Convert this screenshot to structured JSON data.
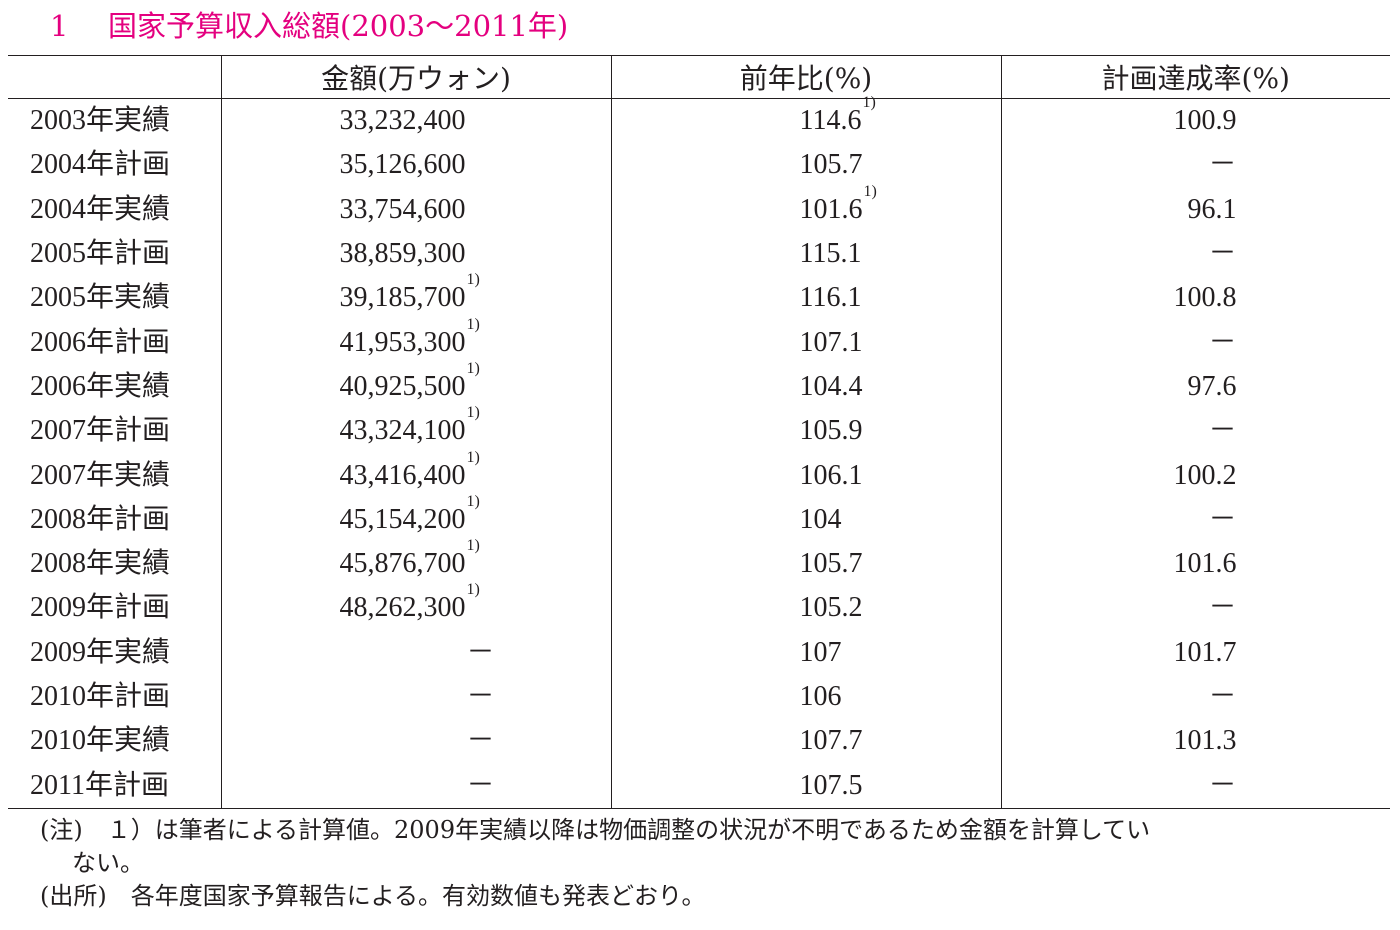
{
  "title": {
    "number": "1",
    "text": "国家予算収入総額(2003～2011年)"
  },
  "table": {
    "headers": [
      "",
      "金額(万ウォン)",
      "前年比(%)",
      "計画達成率(%)"
    ],
    "rows": [
      {
        "label": "2003年実績",
        "amount": "33,232,400",
        "amount_note": "",
        "yoy": "114.6",
        "yoy_note": "1)",
        "achievement": "100.9"
      },
      {
        "label": "2004年計画",
        "amount": "35,126,600",
        "amount_note": "",
        "yoy": "105.7",
        "yoy_note": "",
        "achievement": "－"
      },
      {
        "label": "2004年実績",
        "amount": "33,754,600",
        "amount_note": "",
        "yoy": "101.6",
        "yoy_note": "1)",
        "achievement": "96.1"
      },
      {
        "label": "2005年計画",
        "amount": "38,859,300",
        "amount_note": "",
        "yoy": "115.1",
        "yoy_note": "",
        "achievement": "－"
      },
      {
        "label": "2005年実績",
        "amount": "39,185,700",
        "amount_note": "1)",
        "yoy": "116.1",
        "yoy_note": "",
        "achievement": "100.8"
      },
      {
        "label": "2006年計画",
        "amount": "41,953,300",
        "amount_note": "1)",
        "yoy": "107.1",
        "yoy_note": "",
        "achievement": "－"
      },
      {
        "label": "2006年実績",
        "amount": "40,925,500",
        "amount_note": "1)",
        "yoy": "104.4",
        "yoy_note": "",
        "achievement": "97.6"
      },
      {
        "label": "2007年計画",
        "amount": "43,324,100",
        "amount_note": "1)",
        "yoy": "105.9",
        "yoy_note": "",
        "achievement": "－"
      },
      {
        "label": "2007年実績",
        "amount": "43,416,400",
        "amount_note": "1)",
        "yoy": "106.1",
        "yoy_note": "",
        "achievement": "100.2"
      },
      {
        "label": "2008年計画",
        "amount": "45,154,200",
        "amount_note": "1)",
        "yoy": "104",
        "yoy_note": "",
        "achievement": "－"
      },
      {
        "label": "2008年実績",
        "amount": "45,876,700",
        "amount_note": "1)",
        "yoy": "105.7",
        "yoy_note": "",
        "achievement": "101.6"
      },
      {
        "label": "2009年計画",
        "amount": "48,262,300",
        "amount_note": "1)",
        "yoy": "105.2",
        "yoy_note": "",
        "achievement": "－"
      },
      {
        "label": "2009年実績",
        "amount": "－",
        "amount_note": "",
        "yoy": "107",
        "yoy_note": "",
        "achievement": "101.7"
      },
      {
        "label": "2010年計画",
        "amount": "－",
        "amount_note": "",
        "yoy": "106",
        "yoy_note": "",
        "achievement": "－"
      },
      {
        "label": "2010年実績",
        "amount": "－",
        "amount_note": "",
        "yoy": "107.7",
        "yoy_note": "",
        "achievement": "101.3"
      },
      {
        "label": "2011年計画",
        "amount": "－",
        "amount_note": "",
        "yoy": "107.5",
        "yoy_note": "",
        "achievement": "－"
      }
    ]
  },
  "notes": {
    "note_tag": "(注)",
    "note_line1": "１）は筆者による計算値。2009年実績以降は物価調整の状況が不明であるため金額を計算してい",
    "note_line2": "ない。",
    "source_tag": "(出所)",
    "source_text": "各年度国家予算報告による。有効数値も発表どおり。"
  }
}
